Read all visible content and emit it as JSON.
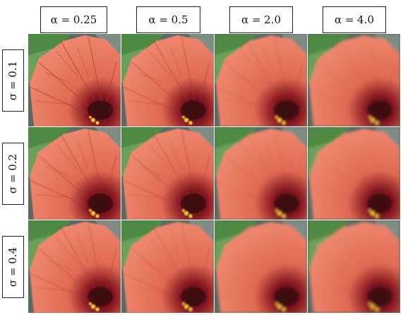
{
  "columns": [
    {
      "label": "α = 0.25",
      "alpha": 0.25
    },
    {
      "label": "α = 0.5",
      "alpha": 0.5
    },
    {
      "label": "α = 2.0",
      "alpha": 2.0
    },
    {
      "label": "α = 4.0",
      "alpha": 4.0
    }
  ],
  "rows": [
    {
      "label": "σ = 0.1",
      "sigma": 0.1
    },
    {
      "label": "σ = 0.2",
      "sigma": 0.2
    },
    {
      "label": "σ = 0.4",
      "sigma": 0.4
    }
  ],
  "image": {
    "subject": "red hibiscus flower close-up",
    "colors": {
      "petal": "#e06a52",
      "petal_light": "#f08a72",
      "center": "#3a0a10",
      "leaf": "#4f8a44",
      "stamen": "#f0c040"
    }
  }
}
